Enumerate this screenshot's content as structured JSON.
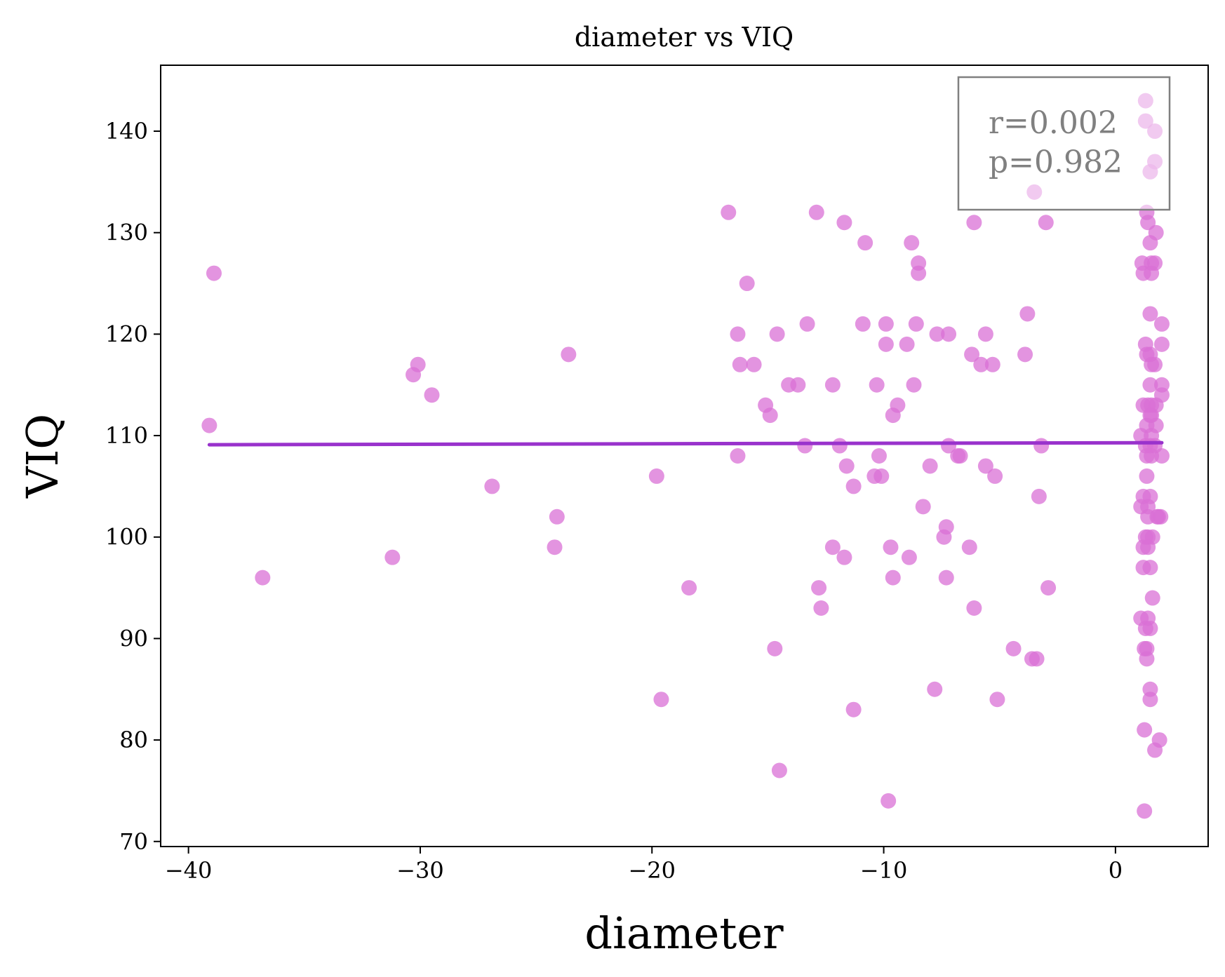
{
  "chart_data": {
    "type": "scatter",
    "title": "diameter vs VIQ",
    "xlabel": "diameter",
    "ylabel": "VIQ",
    "xlim": [
      -41.2,
      4.0
    ],
    "ylim": [
      69.5,
      146.5
    ],
    "xticks": [
      -40,
      -30,
      -20,
      -10,
      0
    ],
    "xtick_labels": [
      "−40",
      "−30",
      "−20",
      "−10",
      "0"
    ],
    "yticks": [
      70,
      80,
      90,
      100,
      110,
      120,
      130,
      140
    ],
    "ytick_labels": [
      "70",
      "80",
      "90",
      "100",
      "110",
      "120",
      "130",
      "140"
    ],
    "grid": false,
    "point_color": "#da70d6",
    "line_color": "#9932cc",
    "annotation_border_color": "#808080",
    "annotation_text_color": "#808080",
    "annotation_lines": [
      "r=0.002",
      "p=0.982"
    ],
    "annotation_position": "top-right",
    "regression_line": {
      "x": [
        -39.1,
        2.0
      ],
      "y": [
        109.1,
        109.3
      ]
    },
    "points": [
      [
        -39.1,
        111
      ],
      [
        -38.9,
        126
      ],
      [
        -36.8,
        96
      ],
      [
        -31.2,
        98
      ],
      [
        -30.3,
        116
      ],
      [
        -30.1,
        117
      ],
      [
        -29.5,
        114
      ],
      [
        -26.9,
        105
      ],
      [
        -24.2,
        99
      ],
      [
        -24.1,
        102
      ],
      [
        -23.6,
        118
      ],
      [
        -19.8,
        106
      ],
      [
        -19.6,
        84
      ],
      [
        -18.4,
        95
      ],
      [
        -16.7,
        132
      ],
      [
        -16.3,
        120
      ],
      [
        -16.3,
        108
      ],
      [
        -16.2,
        117
      ],
      [
        -15.9,
        125
      ],
      [
        -15.6,
        117
      ],
      [
        -15.1,
        113
      ],
      [
        -14.9,
        112
      ],
      [
        -14.7,
        89
      ],
      [
        -14.6,
        120
      ],
      [
        -14.5,
        77
      ],
      [
        -14.1,
        115
      ],
      [
        -13.7,
        115
      ],
      [
        -13.4,
        109
      ],
      [
        -13.3,
        121
      ],
      [
        -12.9,
        132
      ],
      [
        -12.8,
        95
      ],
      [
        -12.7,
        93
      ],
      [
        -12.2,
        99
      ],
      [
        -12.2,
        115
      ],
      [
        -11.9,
        109
      ],
      [
        -11.7,
        131
      ],
      [
        -11.7,
        98
      ],
      [
        -11.6,
        107
      ],
      [
        -11.3,
        105
      ],
      [
        -11.3,
        83
      ],
      [
        -10.9,
        121
      ],
      [
        -10.8,
        129
      ],
      [
        -10.4,
        106
      ],
      [
        -10.3,
        115
      ],
      [
        -10.2,
        108
      ],
      [
        -10.1,
        106
      ],
      [
        -9.9,
        121
      ],
      [
        -9.9,
        119
      ],
      [
        -9.8,
        74
      ],
      [
        -9.7,
        99
      ],
      [
        -9.6,
        112
      ],
      [
        -9.6,
        96
      ],
      [
        -9.4,
        113
      ],
      [
        -9.0,
        119
      ],
      [
        -8.9,
        98
      ],
      [
        -8.8,
        129
      ],
      [
        -8.7,
        115
      ],
      [
        -8.6,
        121
      ],
      [
        -8.5,
        127
      ],
      [
        -8.5,
        126
      ],
      [
        -8.3,
        103
      ],
      [
        -8.0,
        107
      ],
      [
        -7.8,
        85
      ],
      [
        -7.7,
        120
      ],
      [
        -7.4,
        100
      ],
      [
        -7.3,
        96
      ],
      [
        -7.3,
        101
      ],
      [
        -7.2,
        120
      ],
      [
        -7.2,
        109
      ],
      [
        -6.8,
        108
      ],
      [
        -6.7,
        108
      ],
      [
        -6.3,
        99
      ],
      [
        -6.2,
        118
      ],
      [
        -6.1,
        131
      ],
      [
        -6.1,
        93
      ],
      [
        -5.8,
        117
      ],
      [
        -5.6,
        120
      ],
      [
        -5.6,
        107
      ],
      [
        -5.3,
        117
      ],
      [
        -5.2,
        106
      ],
      [
        -5.1,
        84
      ],
      [
        -4.4,
        89
      ],
      [
        -3.9,
        118
      ],
      [
        -3.8,
        122
      ],
      [
        -3.6,
        88
      ],
      [
        -3.5,
        134
      ],
      [
        -3.4,
        88
      ],
      [
        -3.3,
        104
      ],
      [
        -3.2,
        109
      ],
      [
        -3.0,
        131
      ],
      [
        -2.9,
        95
      ],
      [
        1.1,
        92
      ],
      [
        1.1,
        110
      ],
      [
        1.1,
        103
      ],
      [
        1.15,
        127
      ],
      [
        1.2,
        113
      ],
      [
        1.2,
        126
      ],
      [
        1.2,
        104
      ],
      [
        1.2,
        99
      ],
      [
        1.2,
        97
      ],
      [
        1.25,
        89
      ],
      [
        1.25,
        81
      ],
      [
        1.25,
        73
      ],
      [
        1.3,
        143
      ],
      [
        1.3,
        141
      ],
      [
        1.3,
        119
      ],
      [
        1.3,
        109
      ],
      [
        1.3,
        100
      ],
      [
        1.3,
        91
      ],
      [
        1.35,
        132
      ],
      [
        1.35,
        118
      ],
      [
        1.35,
        111
      ],
      [
        1.35,
        108
      ],
      [
        1.35,
        106
      ],
      [
        1.35,
        89
      ],
      [
        1.35,
        88
      ],
      [
        1.4,
        131
      ],
      [
        1.4,
        113
      ],
      [
        1.4,
        103
      ],
      [
        1.4,
        100
      ],
      [
        1.4,
        99
      ],
      [
        1.4,
        102
      ],
      [
        1.4,
        92
      ],
      [
        1.5,
        136
      ],
      [
        1.5,
        129
      ],
      [
        1.5,
        122
      ],
      [
        1.5,
        118
      ],
      [
        1.5,
        115
      ],
      [
        1.5,
        112
      ],
      [
        1.5,
        109
      ],
      [
        1.5,
        104
      ],
      [
        1.5,
        97
      ],
      [
        1.5,
        91
      ],
      [
        1.5,
        85
      ],
      [
        1.5,
        84
      ],
      [
        1.55,
        127
      ],
      [
        1.55,
        126
      ],
      [
        1.55,
        117
      ],
      [
        1.55,
        113
      ],
      [
        1.55,
        112
      ],
      [
        1.55,
        110
      ],
      [
        1.55,
        108
      ],
      [
        1.6,
        100
      ],
      [
        1.6,
        94
      ],
      [
        1.7,
        140
      ],
      [
        1.7,
        137
      ],
      [
        1.7,
        127
      ],
      [
        1.7,
        117
      ],
      [
        1.7,
        109
      ],
      [
        1.7,
        79
      ],
      [
        1.75,
        130
      ],
      [
        1.75,
        113
      ],
      [
        1.75,
        111
      ],
      [
        1.8,
        102
      ],
      [
        1.85,
        102
      ],
      [
        1.9,
        80
      ],
      [
        1.95,
        102
      ],
      [
        2.0,
        121
      ],
      [
        2.0,
        119
      ],
      [
        2.0,
        115
      ],
      [
        2.0,
        114
      ],
      [
        2.0,
        108
      ]
    ]
  }
}
